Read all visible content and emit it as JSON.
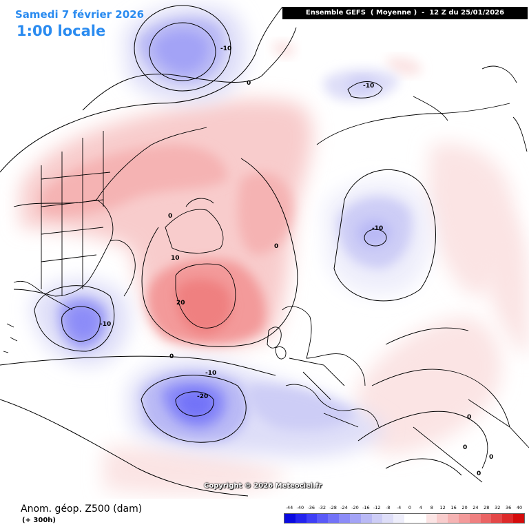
{
  "header": {
    "date": "Samedi 7 février 2026",
    "time": "1:00 locale",
    "run_info": "Ensemble GEFS  ( Moyenne )  -  12 Z du 25/01/2026"
  },
  "map": {
    "contour_labels": [
      "-10",
      "0",
      "-10",
      "0",
      "-10",
      "0",
      "-10",
      "10",
      "20",
      "0",
      "-10",
      "-20",
      "0",
      "0",
      "0",
      "0"
    ]
  },
  "copyright": "Copyright © 2026 Meteociel.fr",
  "footer": {
    "field_title": "Anom. géop. Z500 (dam)",
    "lead_time": "(+ 300h)"
  },
  "scale": {
    "labels": [
      "-44",
      "-40",
      "-36",
      "-32",
      "-28",
      "-24",
      "-20",
      "-16",
      "-12",
      "-8",
      "-4",
      "0",
      "4",
      "8",
      "12",
      "16",
      "20",
      "24",
      "28",
      "32",
      "36",
      "40"
    ],
    "colors": [
      "#0a0ae0",
      "#2424ee",
      "#3f3ff6",
      "#5a5af8",
      "#7373f8",
      "#8c8cf8",
      "#a3a3f6",
      "#b9b9f5",
      "#cdcdf6",
      "#dedef8",
      "#eeeefb",
      "#ffffff",
      "#ffffff",
      "#fbe4e4",
      "#f8cccc",
      "#f5b3b3",
      "#f39a9a",
      "#ef8080",
      "#ea6464",
      "#e44848",
      "#dd2a2a",
      "#d40c0c"
    ]
  }
}
